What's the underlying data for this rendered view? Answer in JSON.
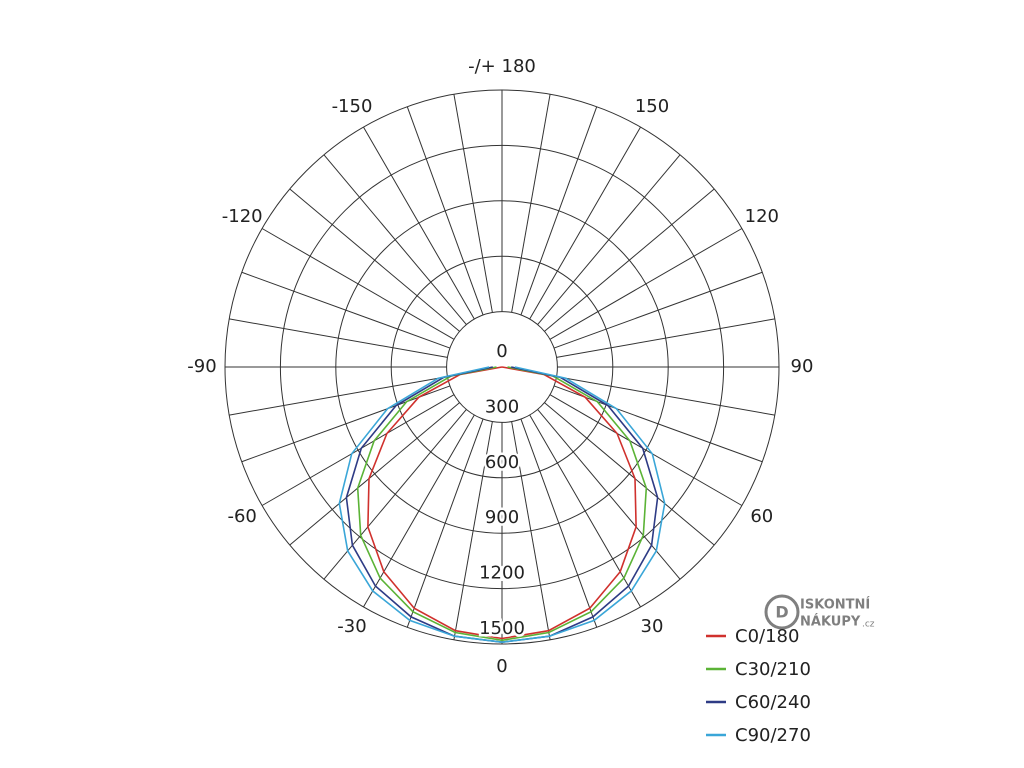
{
  "chart_data": {
    "type": "polar",
    "angles": [
      -90,
      -80,
      -70,
      -60,
      -50,
      -40,
      -30,
      -20,
      -10,
      0,
      10,
      20,
      30,
      40,
      50,
      60,
      70,
      80,
      90
    ],
    "series": [
      {
        "name": "C0/180",
        "color": "#d0312d",
        "values": [
          0,
          230,
          480,
          720,
          940,
          1130,
          1280,
          1390,
          1450,
          1470,
          1450,
          1390,
          1280,
          1130,
          940,
          720,
          480,
          230,
          0
        ]
      },
      {
        "name": "C30/210",
        "color": "#5bb336",
        "values": [
          30,
          280,
          550,
          800,
          1020,
          1190,
          1320,
          1410,
          1460,
          1480,
          1460,
          1410,
          1320,
          1190,
          1020,
          800,
          550,
          280,
          30
        ]
      },
      {
        "name": "C60/240",
        "color": "#2e3b85",
        "values": [
          50,
          320,
          610,
          880,
          1100,
          1260,
          1370,
          1440,
          1480,
          1490,
          1480,
          1440,
          1370,
          1260,
          1100,
          880,
          610,
          320,
          50
        ]
      },
      {
        "name": "C90/270",
        "color": "#3aa6d8",
        "values": [
          70,
          350,
          660,
          940,
          1150,
          1300,
          1400,
          1460,
          1480,
          1490,
          1480,
          1460,
          1400,
          1300,
          1150,
          940,
          660,
          350,
          70
        ]
      }
    ],
    "rlim": [
      0,
      1500
    ],
    "rticks": [
      0,
      300,
      600,
      900,
      1200,
      1500
    ],
    "angle_ticks": [
      0,
      30,
      60,
      90,
      120,
      150,
      {
        "value": 180,
        "label": "-/+ 180"
      },
      -150,
      -120,
      -90,
      -60,
      -30
    ],
    "grid": true,
    "legend": "lower right",
    "watermark": [
      "ISKONTNÍ",
      "NÁKUPY",
      ".cz"
    ]
  }
}
